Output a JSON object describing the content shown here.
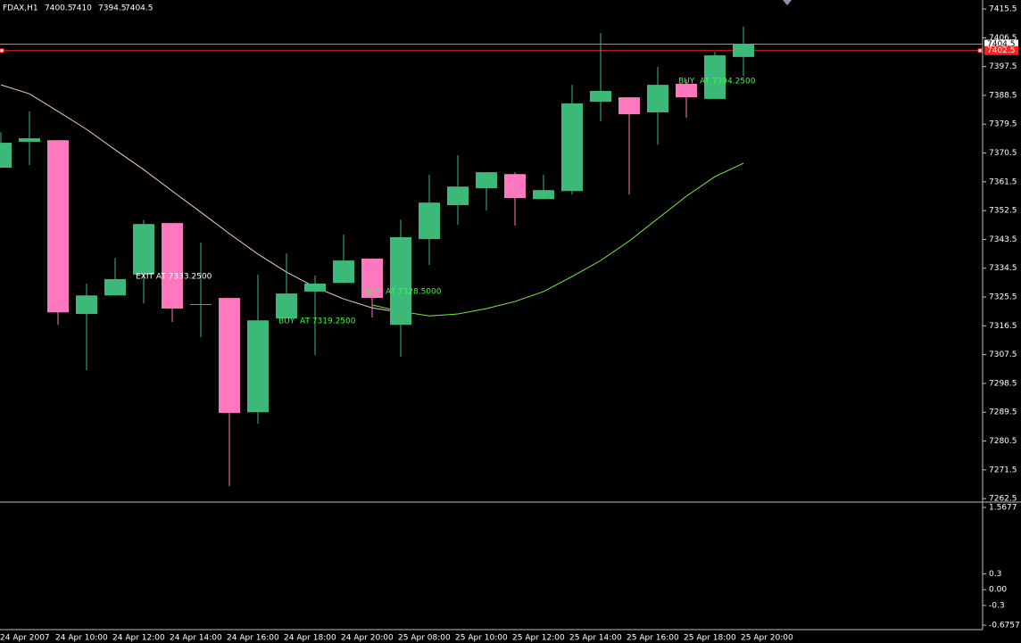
{
  "chart_data": [
    {
      "type": "candlestick",
      "symbol": "FDAX,H1",
      "categories": [
        "24 Apr 2007",
        null,
        "24 Apr 10:00",
        null,
        "24 Apr 12:00",
        null,
        "24 Apr 14:00",
        null,
        "24 Apr 16:00",
        null,
        "24 Apr 18:00",
        null,
        "24 Apr 20:00",
        null,
        "25 Apr 08:00",
        null,
        "25 Apr 10:00",
        null,
        "25 Apr 12:00",
        null,
        "25 Apr 14:00",
        null,
        "25 Apr 16:00",
        null,
        "25 Apr 18:00",
        null,
        "25 Apr 20:00"
      ],
      "open": [
        7365.9,
        7374.0,
        7374.5,
        7320.2,
        7326.0,
        7332.5,
        7348.6,
        7323.3,
        7325.2,
        7289.5,
        7318.8,
        7327.2,
        7329.9,
        7337.5,
        7316.8,
        7343.6,
        7354.2,
        7359.5,
        7363.9,
        7356.1,
        7358.6,
        7386.5,
        7387.9,
        7383.2,
        7392.1,
        7387.4,
        7400.5
      ],
      "high": [
        7377.0,
        7383.5,
        7374.5,
        7329.7,
        7337.7,
        7349.5,
        7348.6,
        7342.5,
        7325.2,
        7332.5,
        7339.1,
        7332.2,
        7345.0,
        7337.5,
        7349.7,
        7363.7,
        7369.8,
        7364.5,
        7364.5,
        7363.7,
        7391.8,
        7408.0,
        7387.9,
        7397.4,
        7393.5,
        7402.1,
        7410.0
      ],
      "low": [
        7365.9,
        7366.7,
        7316.8,
        7302.6,
        7326.0,
        7323.5,
        7317.7,
        7312.9,
        7266.4,
        7285.9,
        7318.8,
        7307.4,
        7329.9,
        7319.1,
        7306.8,
        7335.5,
        7348.1,
        7352.5,
        7347.8,
        7356.1,
        7357.5,
        7380.4,
        7357.5,
        7373.1,
        7381.5,
        7387.4,
        7394.5
      ],
      "close": [
        7373.7,
        7375.1,
        7320.7,
        7326.0,
        7331.1,
        7348.3,
        7321.9,
        7323.3,
        7289.3,
        7318.2,
        7326.6,
        7329.7,
        7336.9,
        7325.2,
        7344.2,
        7355.0,
        7360.0,
        7364.5,
        7356.4,
        7358.9,
        7386.0,
        7389.9,
        7382.6,
        7391.8,
        7387.9,
        7401.0,
        7404.5
      ],
      "up_color": "#3cb878",
      "down_color": "#ff77bf",
      "series": [
        {
          "color": "#f2c6dc",
          "values": [
            7391.8,
            7389.0,
            7383.5,
            7377.9,
            7371.5,
            7365.3,
            7358.6,
            7352.0,
            7345.3,
            7338.9,
            7333.3,
            7328.6,
            7324.9,
            7322.1,
            7320.7,
            null,
            null,
            null,
            null,
            null,
            null,
            null,
            null,
            null,
            null,
            null,
            null
          ]
        },
        {
          "color": "#7ff03a",
          "values": [
            null,
            null,
            null,
            null,
            null,
            null,
            null,
            null,
            null,
            null,
            null,
            null,
            null,
            7323.0,
            7321.0,
            7319.6,
            7320.2,
            7321.9,
            7324.1,
            7327.2,
            7331.9,
            7336.9,
            7343.0,
            7350.0,
            7357.0,
            7363.1,
            7367.3
          ]
        }
      ],
      "annotations": [
        {
          "text": "EXIT AT 7333.2500",
          "color": "#ffffff"
        },
        {
          "text": "BUY  AT 7319.2500",
          "color": "#33ff33"
        },
        {
          "text": "BUY  AT 7328.5000",
          "color": "#33ff33"
        },
        {
          "text": "BUY  AT 7394.2500",
          "color": "#33ff33"
        }
      ],
      "price_lines": [
        {
          "value": 7404.5,
          "color": "#8a93a6"
        },
        {
          "value": 7402.5,
          "color": "#ff2020"
        }
      ],
      "ylim": [
        7261.7,
        7418.3
      ],
      "yticks": [
        7415.5,
        7406.5,
        7397.5,
        7388.5,
        7379.5,
        7370.5,
        7361.5,
        7352.5,
        7343.5,
        7334.5,
        7325.5,
        7316.5,
        7307.5,
        7298.5,
        7289.5,
        7280.5,
        7271.5,
        7262.5
      ]
    },
    {
      "type": "indicator",
      "ylim": [
        -0.6757,
        1.5677
      ],
      "yticks": [
        1.5677,
        0.3,
        {
          "value": 0,
          "label": "0.00"
        },
        -0.3,
        -0.6757
      ]
    }
  ]
}
